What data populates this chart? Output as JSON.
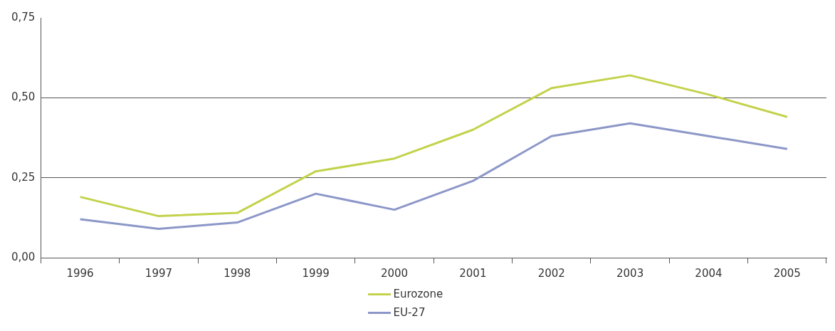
{
  "chart_data": {
    "type": "line",
    "categories": [
      "1996",
      "1997",
      "1998",
      "1999",
      "2000",
      "2001",
      "2002",
      "2003",
      "2004",
      "2005"
    ],
    "series": [
      {
        "name": "Eurozone",
        "color": "#c3d24b",
        "values": [
          0.19,
          0.13,
          0.14,
          0.27,
          0.31,
          0.4,
          0.53,
          0.57,
          0.51,
          0.44
        ]
      },
      {
        "name": "EU-27",
        "color": "#8c97c8",
        "values": [
          0.12,
          0.09,
          0.11,
          0.2,
          0.15,
          0.24,
          0.38,
          0.42,
          0.38,
          0.34
        ]
      }
    ],
    "ylim": [
      0,
      0.75
    ],
    "yticks": [
      {
        "value": 0,
        "label": "0,00"
      },
      {
        "value": 0.25,
        "label": "0,25"
      },
      {
        "value": 0.5,
        "label": "0,50"
      },
      {
        "value": 0.75,
        "label": "0,75"
      }
    ],
    "grid": "y",
    "legend": "bottom",
    "marker": "none",
    "line_style": "solid"
  }
}
